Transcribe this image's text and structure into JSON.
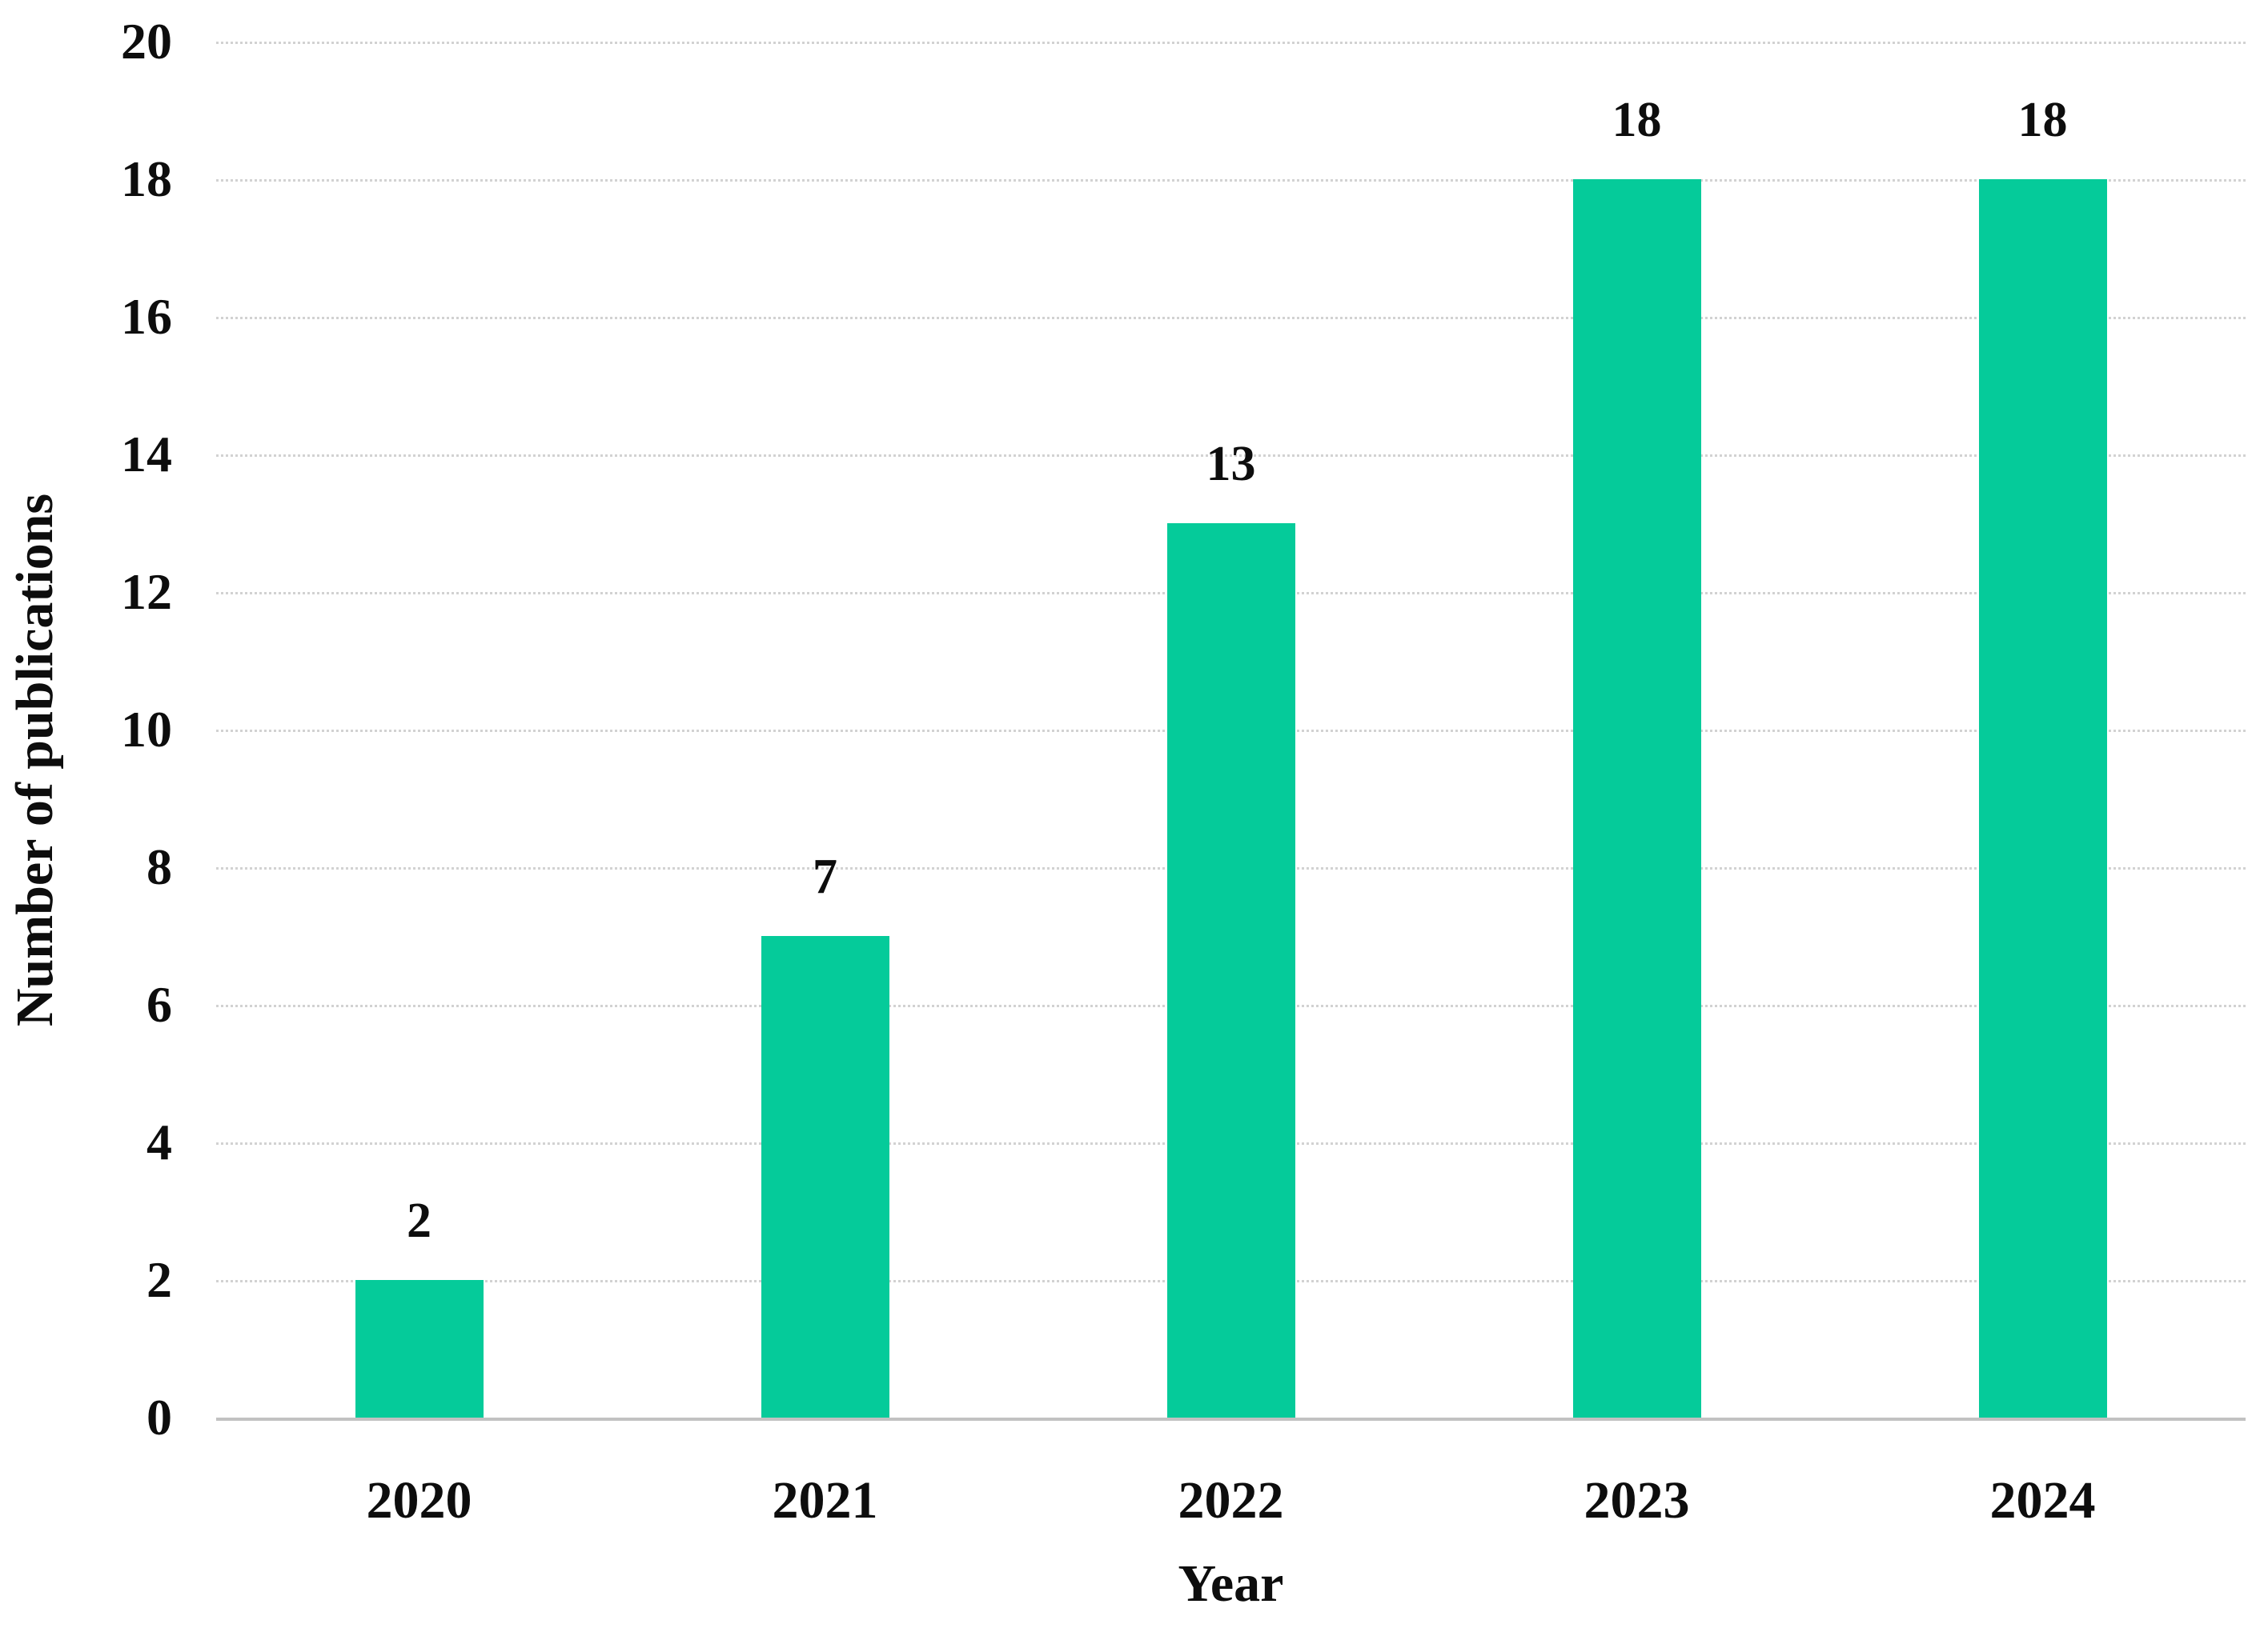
{
  "page": {
    "background_color": "#ffffff",
    "text_color": "#0d0d0d"
  },
  "chart_data": {
    "type": "bar",
    "title": "",
    "categories": [
      "2020",
      "2021",
      "2022",
      "2023",
      "2024"
    ],
    "values": [
      2,
      7,
      13,
      18,
      18
    ],
    "data_labels": [
      "2",
      "7",
      "13",
      "18",
      "18"
    ],
    "xlabel": "Year",
    "ylabel": "Number of publications",
    "ylim": [
      0,
      20
    ],
    "yticks": [
      0,
      2,
      4,
      6,
      8,
      10,
      12,
      14,
      16,
      18,
      20
    ],
    "grid": true,
    "legend_position": "none",
    "bar_color": "#05cb9a",
    "gridline_color": "#d2d2d2",
    "axis_line_color": "#c2c2c2"
  }
}
